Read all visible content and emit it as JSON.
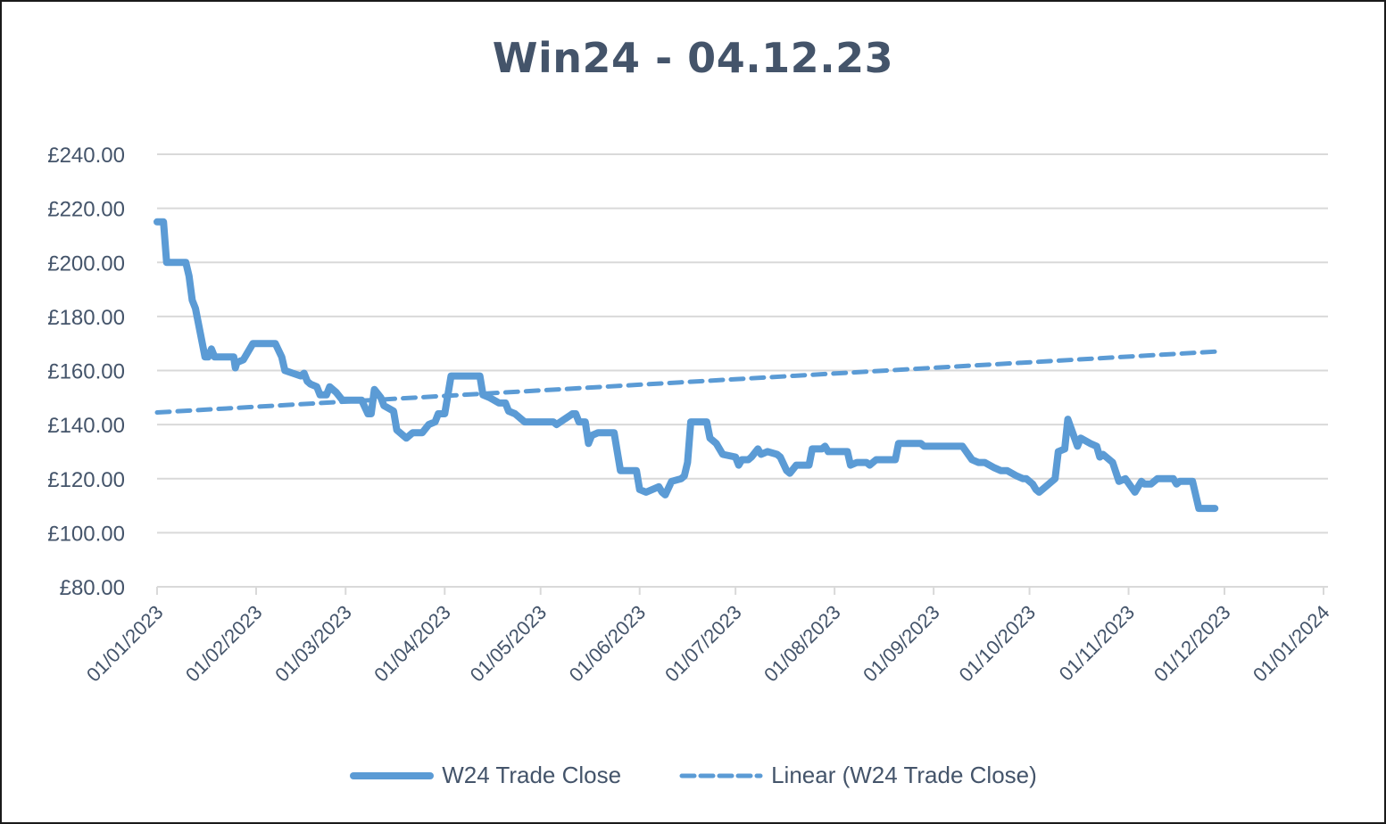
{
  "chart_data": {
    "type": "line",
    "title": "Win24 - 04.12.23",
    "xlabel": "",
    "ylabel": "",
    "ylim": [
      80,
      240
    ],
    "y_ticks": [
      "£80.00",
      "£100.00",
      "£120.00",
      "£140.00",
      "£160.00",
      "£180.00",
      "£200.00",
      "£220.00",
      "£240.00"
    ],
    "y_tick_values": [
      80,
      100,
      120,
      140,
      160,
      180,
      200,
      220,
      240
    ],
    "x_ticks": [
      "01/01/2023",
      "01/02/2023",
      "01/03/2023",
      "01/04/2023",
      "01/05/2023",
      "01/06/2023",
      "01/07/2023",
      "01/08/2023",
      "01/09/2023",
      "01/10/2023",
      "01/11/2023",
      "01/12/2023",
      "01/01/2024"
    ],
    "x_tick_days": [
      0,
      31,
      59,
      90,
      120,
      151,
      181,
      212,
      243,
      273,
      304,
      334,
      365
    ],
    "grid": {
      "horizontal": true,
      "vertical": false
    },
    "legend_position": "bottom",
    "series": [
      {
        "name": "W24 Trade Close",
        "style": "solid",
        "color": "#5b9bd5",
        "points_day_value": [
          [
            0,
            215
          ],
          [
            2,
            215
          ],
          [
            3,
            200
          ],
          [
            9,
            200
          ],
          [
            10,
            195
          ],
          [
            11,
            186
          ],
          [
            12,
            183
          ],
          [
            15,
            165
          ],
          [
            16,
            165
          ],
          [
            17,
            168
          ],
          [
            18,
            165
          ],
          [
            24,
            165
          ],
          [
            24.5,
            161
          ],
          [
            25,
            163
          ],
          [
            27,
            164
          ],
          [
            30,
            170
          ],
          [
            37,
            170
          ],
          [
            39,
            165
          ],
          [
            40,
            160
          ],
          [
            45,
            158
          ],
          [
            46,
            159
          ],
          [
            47,
            156
          ],
          [
            48,
            155
          ],
          [
            50,
            154
          ],
          [
            51,
            151
          ],
          [
            53,
            151
          ],
          [
            54,
            154
          ],
          [
            56,
            152
          ],
          [
            58,
            149
          ],
          [
            64,
            149
          ],
          [
            66,
            144
          ],
          [
            67,
            144
          ],
          [
            68,
            153
          ],
          [
            70,
            150
          ],
          [
            71,
            147
          ],
          [
            74,
            145
          ],
          [
            75,
            138
          ],
          [
            78,
            135
          ],
          [
            80,
            137
          ],
          [
            83,
            137
          ],
          [
            85,
            140
          ],
          [
            87,
            141
          ],
          [
            88,
            144
          ],
          [
            90,
            144
          ],
          [
            92,
            158
          ],
          [
            101,
            158
          ],
          [
            102,
            151
          ],
          [
            104,
            150
          ],
          [
            107,
            148
          ],
          [
            109,
            148
          ],
          [
            110,
            145
          ],
          [
            112,
            144
          ],
          [
            115,
            141
          ],
          [
            124,
            141
          ],
          [
            125,
            140
          ],
          [
            130,
            144
          ],
          [
            131,
            144
          ],
          [
            132,
            141
          ],
          [
            134,
            141
          ],
          [
            135,
            133
          ],
          [
            136,
            136
          ],
          [
            138,
            137
          ],
          [
            143,
            137
          ],
          [
            145,
            123
          ],
          [
            150,
            123
          ],
          [
            151,
            116
          ],
          [
            153,
            115
          ],
          [
            157,
            117
          ],
          [
            158,
            115
          ],
          [
            159,
            114
          ],
          [
            161,
            119
          ],
          [
            164,
            120
          ],
          [
            165,
            121
          ],
          [
            166,
            126
          ],
          [
            167,
            141
          ],
          [
            172,
            141
          ],
          [
            173,
            135
          ],
          [
            175,
            133
          ],
          [
            177,
            129
          ],
          [
            181,
            128
          ],
          [
            182,
            125
          ],
          [
            183,
            127
          ],
          [
            185,
            127
          ],
          [
            186,
            128
          ],
          [
            188,
            131
          ],
          [
            189,
            129
          ],
          [
            191,
            130
          ],
          [
            194,
            129
          ],
          [
            195,
            128
          ],
          [
            197,
            123
          ],
          [
            198,
            122
          ],
          [
            200,
            125
          ],
          [
            204,
            125
          ],
          [
            205,
            131
          ],
          [
            206,
            131
          ],
          [
            208,
            131
          ],
          [
            209,
            132
          ],
          [
            210,
            130
          ],
          [
            216,
            130
          ],
          [
            217,
            125
          ],
          [
            219,
            126
          ],
          [
            222,
            126
          ],
          [
            223,
            125
          ],
          [
            225,
            127
          ],
          [
            231,
            127
          ],
          [
            232,
            133
          ],
          [
            239,
            133
          ],
          [
            240,
            132
          ],
          [
            252,
            132
          ],
          [
            255,
            127
          ],
          [
            257,
            126
          ],
          [
            259,
            126
          ],
          [
            262,
            124
          ],
          [
            264,
            123
          ],
          [
            266,
            123
          ],
          [
            269,
            121
          ],
          [
            271,
            120
          ],
          [
            272,
            120
          ],
          [
            274,
            118
          ],
          [
            275,
            116
          ],
          [
            276,
            115
          ],
          [
            277,
            116
          ],
          [
            280,
            119
          ],
          [
            281,
            120
          ],
          [
            282,
            130
          ],
          [
            284,
            131
          ],
          [
            285,
            142
          ],
          [
            288,
            132
          ],
          [
            289,
            135
          ],
          [
            292,
            133
          ],
          [
            294,
            132
          ],
          [
            295,
            128
          ],
          [
            296,
            129
          ],
          [
            299,
            126
          ],
          [
            301,
            119
          ],
          [
            303,
            120
          ],
          [
            306,
            115
          ],
          [
            308,
            119
          ],
          [
            309,
            118
          ],
          [
            311,
            118
          ],
          [
            313,
            120
          ],
          [
            318,
            120
          ],
          [
            319,
            118
          ],
          [
            320,
            119
          ],
          [
            324,
            119
          ],
          [
            326,
            109
          ],
          [
            331,
            109
          ]
        ],
        "start_value": 215,
        "end_value": 109,
        "max_value": 215,
        "min_value": 109
      },
      {
        "name": "Linear (W24 Trade Close)",
        "style": "dashed",
        "color": "#5b9bd5",
        "points_day_value": [
          [
            0,
            144.5
          ],
          [
            331,
            167
          ]
        ],
        "start_value": 144.5,
        "end_value": 167
      }
    ]
  },
  "legend": {
    "items": [
      {
        "label": "W24 Trade Close",
        "style": "solid"
      },
      {
        "label": "Linear (W24 Trade Close)",
        "style": "dashed"
      }
    ]
  },
  "colors": {
    "series": "#5b9bd5",
    "text": "#44546a",
    "grid": "#d9d9d9",
    "border": "#1a1a1a"
  }
}
